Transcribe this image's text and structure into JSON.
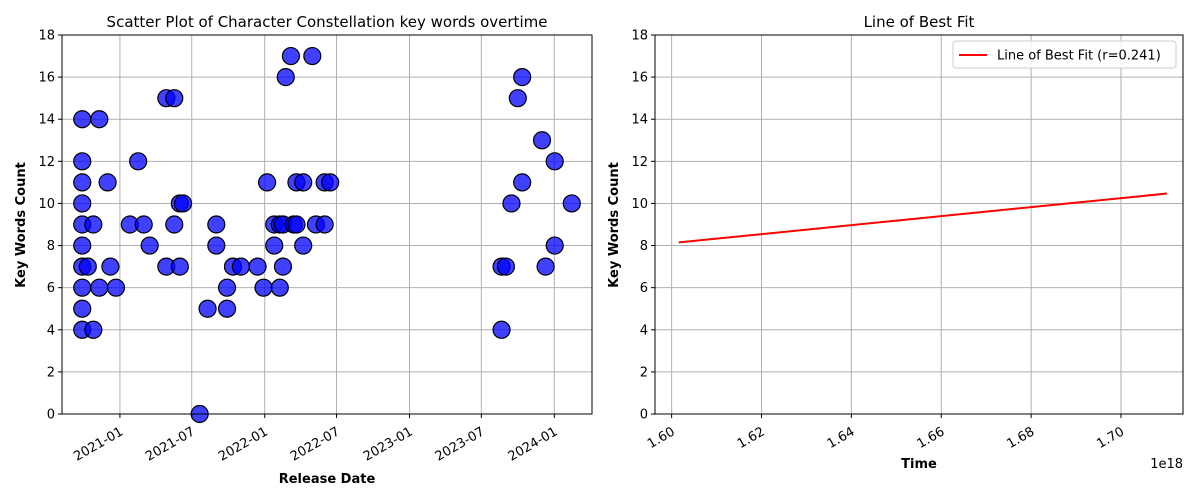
{
  "chart_data": [
    {
      "type": "scatter",
      "title": "Scatter Plot of Character Constellation key words overtime",
      "xlabel": "Release Date",
      "ylabel": "Key Words Count",
      "xlim": [
        "2020-08-08",
        "2024-04-05"
      ],
      "ylim": [
        0,
        18
      ],
      "xticks": [
        "2021-01",
        "2021-07",
        "2022-01",
        "2022-07",
        "2023-01",
        "2023-07",
        "2024-01"
      ],
      "yticks": [
        0,
        2,
        4,
        6,
        8,
        10,
        12,
        14,
        16,
        18
      ],
      "grid": true,
      "marker_color": "#0000ff",
      "marker_edge_color": "#000000",
      "points": [
        {
          "x": "2020-09-28",
          "y": 14
        },
        {
          "x": "2020-09-28",
          "y": 12
        },
        {
          "x": "2020-09-28",
          "y": 11
        },
        {
          "x": "2020-09-28",
          "y": 10
        },
        {
          "x": "2020-09-28",
          "y": 9
        },
        {
          "x": "2020-09-28",
          "y": 8
        },
        {
          "x": "2020-09-28",
          "y": 7
        },
        {
          "x": "2020-09-28",
          "y": 6
        },
        {
          "x": "2020-09-28",
          "y": 5
        },
        {
          "x": "2020-09-28",
          "y": 4
        },
        {
          "x": "2020-10-12",
          "y": 7
        },
        {
          "x": "2020-10-26",
          "y": 9
        },
        {
          "x": "2020-10-26",
          "y": 4
        },
        {
          "x": "2020-11-10",
          "y": 14
        },
        {
          "x": "2020-11-10",
          "y": 6
        },
        {
          "x": "2020-12-01",
          "y": 11
        },
        {
          "x": "2020-12-08",
          "y": 7
        },
        {
          "x": "2020-12-22",
          "y": 6
        },
        {
          "x": "2021-01-26",
          "y": 9
        },
        {
          "x": "2021-02-16",
          "y": 12
        },
        {
          "x": "2021-03-02",
          "y": 9
        },
        {
          "x": "2021-03-17",
          "y": 8
        },
        {
          "x": "2021-04-28",
          "y": 15
        },
        {
          "x": "2021-04-28",
          "y": 7
        },
        {
          "x": "2021-05-18",
          "y": 15
        },
        {
          "x": "2021-05-18",
          "y": 9
        },
        {
          "x": "2021-06-01",
          "y": 10
        },
        {
          "x": "2021-06-01",
          "y": 7
        },
        {
          "x": "2021-06-09",
          "y": 10
        },
        {
          "x": "2021-07-21",
          "y": 0
        },
        {
          "x": "2021-08-10",
          "y": 5
        },
        {
          "x": "2021-09-01",
          "y": 9
        },
        {
          "x": "2021-09-01",
          "y": 8
        },
        {
          "x": "2021-09-28",
          "y": 6
        },
        {
          "x": "2021-09-28",
          "y": 5
        },
        {
          "x": "2021-10-13",
          "y": 7
        },
        {
          "x": "2021-11-02",
          "y": 7
        },
        {
          "x": "2021-12-14",
          "y": 7
        },
        {
          "x": "2021-12-29",
          "y": 6
        },
        {
          "x": "2022-01-07",
          "y": 11
        },
        {
          "x": "2022-01-25",
          "y": 9
        },
        {
          "x": "2022-01-25",
          "y": 8
        },
        {
          "x": "2022-02-08",
          "y": 9
        },
        {
          "x": "2022-02-08",
          "y": 6
        },
        {
          "x": "2022-02-16",
          "y": 9
        },
        {
          "x": "2022-02-16",
          "y": 7
        },
        {
          "x": "2022-02-23",
          "y": 16
        },
        {
          "x": "2022-03-08",
          "y": 17
        },
        {
          "x": "2022-03-15",
          "y": 9
        },
        {
          "x": "2022-03-22",
          "y": 11
        },
        {
          "x": "2022-03-22",
          "y": 9
        },
        {
          "x": "2022-04-08",
          "y": 11
        },
        {
          "x": "2022-04-08",
          "y": 8
        },
        {
          "x": "2022-05-01",
          "y": 17
        },
        {
          "x": "2022-05-10",
          "y": 9
        },
        {
          "x": "2022-06-01",
          "y": 11
        },
        {
          "x": "2022-06-01",
          "y": 9
        },
        {
          "x": "2022-06-15",
          "y": 11
        },
        {
          "x": "2023-08-21",
          "y": 7
        },
        {
          "x": "2023-08-21",
          "y": 4
        },
        {
          "x": "2023-09-01",
          "y": 7
        },
        {
          "x": "2023-09-15",
          "y": 10
        },
        {
          "x": "2023-10-01",
          "y": 15
        },
        {
          "x": "2023-10-12",
          "y": 16
        },
        {
          "x": "2023-10-12",
          "y": 11
        },
        {
          "x": "2023-12-01",
          "y": 13
        },
        {
          "x": "2023-12-10",
          "y": 7
        },
        {
          "x": "2024-01-02",
          "y": 12
        },
        {
          "x": "2024-01-02",
          "y": 8
        },
        {
          "x": "2024-02-14",
          "y": 10
        }
      ]
    },
    {
      "type": "line",
      "title": "Line of Best Fit",
      "xlabel": "Time",
      "ylabel": "Key Words Count",
      "x_offset_label": "1e18",
      "xlim": [
        1.5963,
        1.7138
      ],
      "ylim": [
        0,
        18
      ],
      "xticks": [
        "1.60",
        "1.62",
        "1.64",
        "1.66",
        "1.68",
        "1.70"
      ],
      "yticks": [
        0,
        2,
        4,
        6,
        8,
        10,
        12,
        14,
        16,
        18
      ],
      "grid": true,
      "legend_position": "top-right",
      "series": [
        {
          "name": "Line of Best Fit (r=0.241)",
          "color": "#ff0000",
          "x": [
            1.6016,
            1.7102
          ],
          "y": [
            8.15,
            10.47
          ]
        }
      ]
    }
  ]
}
